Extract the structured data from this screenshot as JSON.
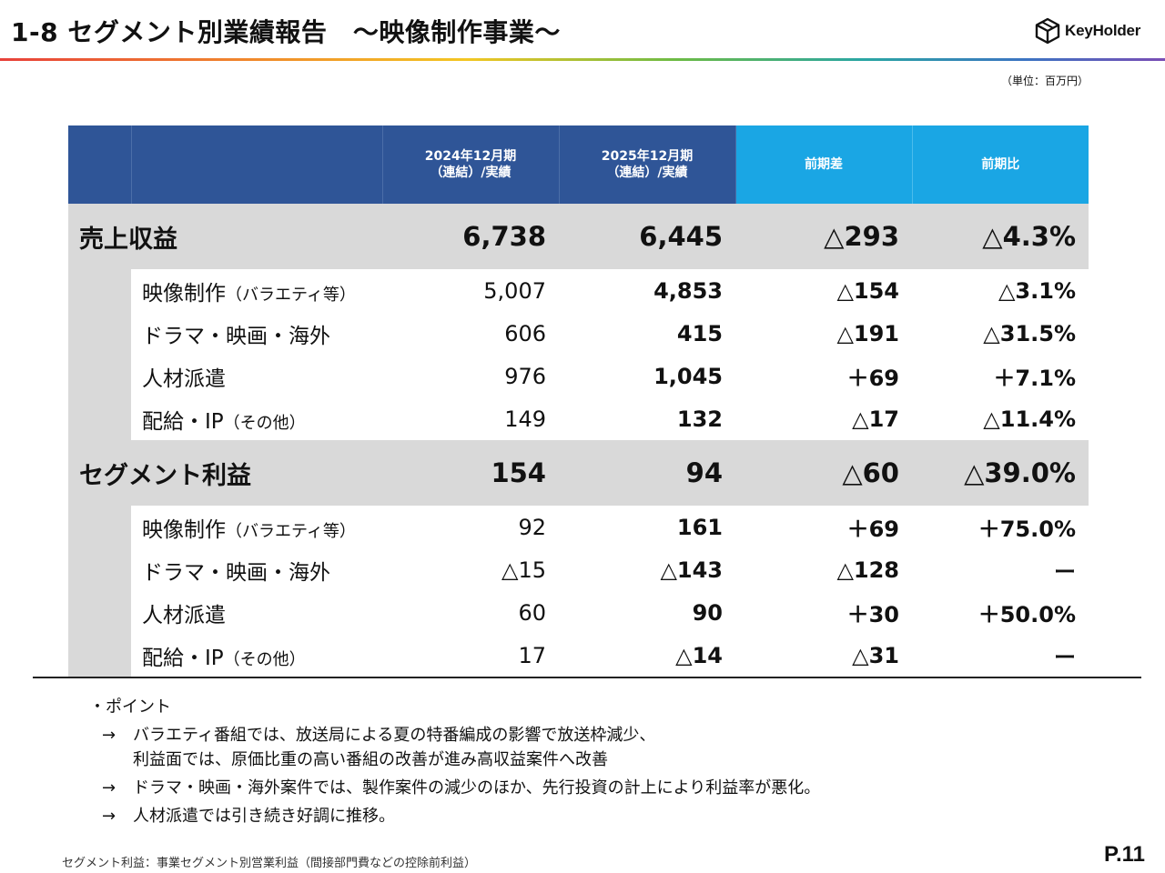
{
  "header": {
    "title": "1-8  セグメント別業績報告　～映像制作事業～",
    "logo_text": "KeyHolder"
  },
  "unit_note": "（単位：百万円）",
  "table": {
    "columns": [
      "2024年12月期",
      "（連結）/実績",
      "2025年12月期",
      "（連結）/実績",
      "前期差",
      "前期比"
    ],
    "rows": [
      {
        "label": "売上収益",
        "note": "",
        "prev": "6,738",
        "curr": "6,445",
        "diff": "△293",
        "ratio": "△4.3%"
      },
      {
        "label": "映像制作",
        "note": "（バラエティ等）",
        "prev": "5,007",
        "curr": "4,853",
        "diff": "△154",
        "ratio": "△3.1%"
      },
      {
        "label": "ドラマ・映画・海外",
        "note": "",
        "prev": "606",
        "curr": "415",
        "diff": "△191",
        "ratio": "△31.5%"
      },
      {
        "label": "人材派遣",
        "note": "",
        "prev": "976",
        "curr": "1,045",
        "diff": "＋69",
        "ratio": "＋7.1%"
      },
      {
        "label": "配給・IP",
        "note": "（その他）",
        "prev": "149",
        "curr": "132",
        "diff": "△17",
        "ratio": "△11.4%"
      },
      {
        "label": "セグメント利益",
        "note": "",
        "prev": "154",
        "curr": "94",
        "diff": "△60",
        "ratio": "△39.0%"
      },
      {
        "label": "映像制作",
        "note": "（バラエティ等）",
        "prev": "92",
        "curr": "161",
        "diff": "＋69",
        "ratio": "＋75.0%"
      },
      {
        "label": "ドラマ・映画・海外",
        "note": "",
        "prev": "△15",
        "curr": "△143",
        "diff": "△128",
        "ratio": "ー"
      },
      {
        "label": "人材派遣",
        "note": "",
        "prev": "60",
        "curr": "90",
        "diff": "＋30",
        "ratio": "＋50.0%"
      },
      {
        "label": "配給・IP",
        "note": "（その他）",
        "prev": "17",
        "curr": "△14",
        "diff": "△31",
        "ratio": "ー"
      }
    ]
  },
  "points": {
    "heading": "・ポイント",
    "arrow": "→",
    "items": [
      [
        "バラエティ番組では、放送局による夏の特番編成の影響で放送枠減少、",
        "利益面では、原価比重の高い番組の改善が進み高収益案件へ改善"
      ],
      [
        "ドラマ・映画・海外案件では、製作案件の減少のほか、先行投資の計上により利益率が悪化。"
      ],
      [
        "人材派遣では引き続き好調に推移。"
      ]
    ]
  },
  "footnote": "セグメント利益：事業セグメント別営業利益（間接部門費などの控除前利益）",
  "page_number": "P.11",
  "colors": {
    "navy": "#2f5597",
    "cyan": "#1aa6e4",
    "gray": "#d9d9d9"
  }
}
